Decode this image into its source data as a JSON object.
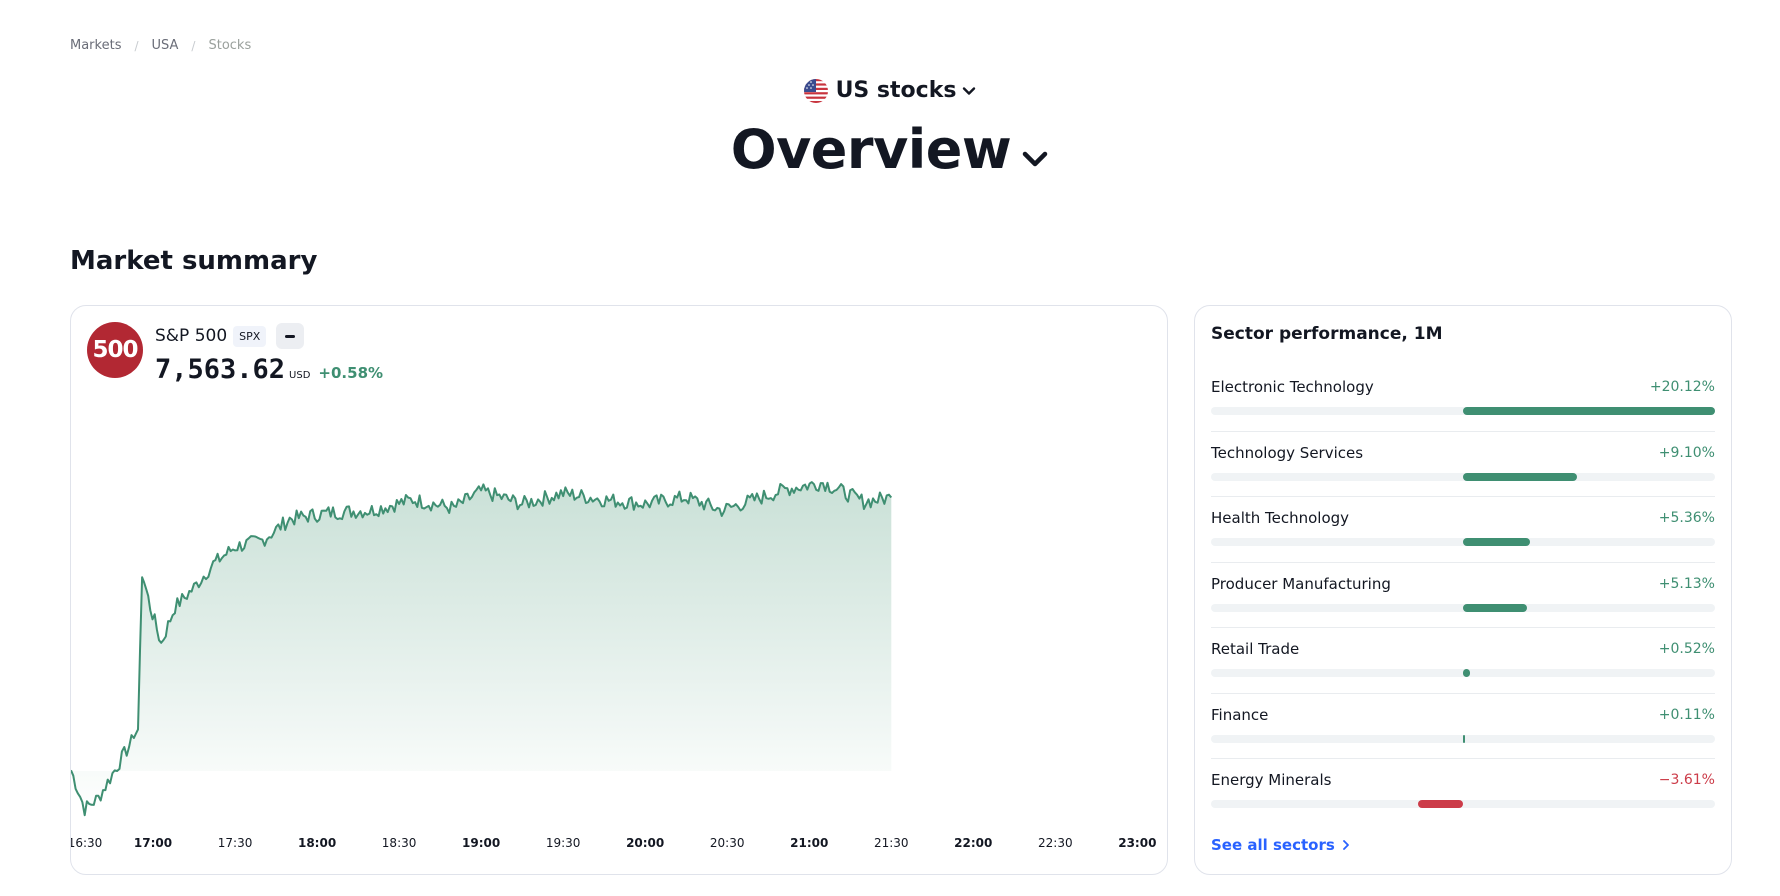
{
  "breadcrumb": [
    {
      "label": "Markets",
      "current": false
    },
    {
      "label": "USA",
      "current": false
    },
    {
      "label": "Stocks",
      "current": true
    }
  ],
  "header": {
    "market_label": "US stocks",
    "flag_icon": "us-flag-icon",
    "title": "Overview"
  },
  "section_title": "Market summary",
  "index_card": {
    "logo_text": "500",
    "name": "S&P 500",
    "ticker": "SPX",
    "price": "7,563.62",
    "currency": "USD",
    "change": "+0.58%",
    "colors": {
      "up": "#3f8f72",
      "logo": "#b22833"
    }
  },
  "chart_data": {
    "type": "area",
    "x_tick_labels": [
      "16:30",
      "17:00",
      "17:30",
      "18:00",
      "18:30",
      "19:00",
      "19:30",
      "20:00",
      "20:30",
      "21:00",
      "21:30",
      "22:00",
      "22:30",
      "23:00"
    ],
    "major_ticks": [
      "17:00",
      "18:00",
      "19:00",
      "20:00",
      "21:00",
      "22:00",
      "23:00"
    ],
    "series": [
      {
        "anchors": [
          {
            "t": 0,
            "v": 7446
          },
          {
            "t": 5,
            "v": 7428
          },
          {
            "t": 10,
            "v": 7433
          },
          {
            "t": 16,
            "v": 7446
          },
          {
            "t": 23,
            "v": 7461
          },
          {
            "t": 24.5,
            "v": 7465
          },
          {
            "t": 26,
            "v": 7538
          },
          {
            "t": 29,
            "v": 7522
          },
          {
            "t": 33,
            "v": 7505
          },
          {
            "t": 38,
            "v": 7522
          },
          {
            "t": 45,
            "v": 7531
          },
          {
            "t": 52,
            "v": 7542
          },
          {
            "t": 60,
            "v": 7550
          },
          {
            "t": 70,
            "v": 7553
          },
          {
            "t": 80,
            "v": 7563
          },
          {
            "t": 95,
            "v": 7566
          },
          {
            "t": 110,
            "v": 7567
          },
          {
            "t": 125,
            "v": 7572
          },
          {
            "t": 140,
            "v": 7568
          },
          {
            "t": 150,
            "v": 7576
          },
          {
            "t": 165,
            "v": 7570
          },
          {
            "t": 180,
            "v": 7575
          },
          {
            "t": 195,
            "v": 7572
          },
          {
            "t": 210,
            "v": 7570
          },
          {
            "t": 225,
            "v": 7573
          },
          {
            "t": 238,
            "v": 7567
          },
          {
            "t": 250,
            "v": 7572
          },
          {
            "t": 262,
            "v": 7577
          },
          {
            "t": 275,
            "v": 7580
          },
          {
            "t": 290,
            "v": 7571
          },
          {
            "t": 300,
            "v": 7573
          }
        ]
      }
    ],
    "ylim": [
      7420,
      7590
    ],
    "xlim_minutes_from_1630": [
      0,
      395
    ],
    "grid": false,
    "colors": {
      "line": "#3f8f72",
      "fill_top": "#c7dfd5",
      "fill_bottom": "#ffffff"
    }
  },
  "sectors": {
    "title": "Sector performance, 1M",
    "items": [
      {
        "name": "Electronic Technology",
        "change": "+20.12%",
        "value": 20.12
      },
      {
        "name": "Technology Services",
        "change": "+9.10%",
        "value": 9.1
      },
      {
        "name": "Health Technology",
        "change": "+5.36%",
        "value": 5.36
      },
      {
        "name": "Producer Manufacturing",
        "change": "+5.13%",
        "value": 5.13
      },
      {
        "name": "Retail Trade",
        "change": "+0.52%",
        "value": 0.52
      },
      {
        "name": "Finance",
        "change": "+0.11%",
        "value": 0.11
      },
      {
        "name": "Energy Minerals",
        "change": "−3.61%",
        "value": -3.61
      }
    ],
    "see_all_label": "See all sectors",
    "colors": {
      "positive": "#3f8f72",
      "negative": "#cc3c49",
      "positive_text": "#3f8f72",
      "negative_text": "#cc3c49"
    }
  }
}
